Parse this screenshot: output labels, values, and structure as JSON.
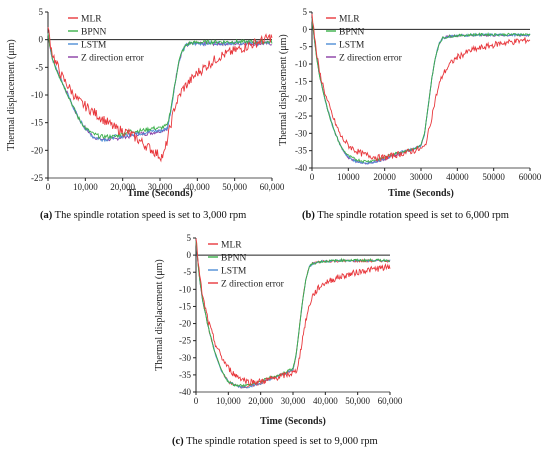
{
  "chart_data": [
    {
      "type": "line",
      "caption_letter": "(a)",
      "caption_text": " The spindle rotation speed is set to 3,000 rpm",
      "xlabel": "Time (Seconds)",
      "ylabel": "Thermal displacement (μm)",
      "xlim": [
        0,
        60000
      ],
      "ylim": [
        -25,
        5
      ],
      "xticks": [
        0,
        10000,
        20000,
        30000,
        40000,
        50000,
        60000
      ],
      "xtick_labels": [
        "0",
        "10,000",
        "20,000",
        "30,000",
        "40,000",
        "50,000",
        "60,000"
      ],
      "yticks": [
        5,
        0,
        -5,
        -10,
        -15,
        -20,
        -25
      ],
      "ytick_labels": [
        "5",
        "0",
        "-5",
        "-10",
        "-15",
        "-20",
        "-25"
      ],
      "legend_position": "top-left",
      "series": [
        {
          "name": "MLR",
          "color": "#e8383d",
          "x": [
            0,
            1000,
            2000,
            4000,
            6000,
            8000,
            10000,
            12000,
            14000,
            16000,
            18000,
            20000,
            22000,
            24000,
            26000,
            28000,
            30000,
            31000,
            32000,
            33000,
            34000,
            36000,
            38000,
            40000,
            42000,
            44000,
            46000,
            48000,
            50000,
            52000,
            54000,
            56000,
            58000,
            60000
          ],
          "y": [
            2,
            -2,
            -4,
            -7,
            -9,
            -11,
            -12,
            -13,
            -14,
            -15,
            -16,
            -16.5,
            -17,
            -18,
            -19,
            -20,
            -21,
            -21,
            -18,
            -15,
            -12,
            -9,
            -7.5,
            -6,
            -5,
            -4,
            -3,
            -2.5,
            -2,
            -1.5,
            -1,
            -0.5,
            0,
            0.5
          ]
        },
        {
          "name": "BPNN",
          "color": "#3cb04a",
          "x": [
            0,
            1000,
            2000,
            4000,
            6000,
            8000,
            10000,
            12000,
            14000,
            16000,
            18000,
            20000,
            22000,
            24000,
            26000,
            28000,
            30000,
            32000,
            33000,
            34000,
            35000,
            36000,
            37000,
            38000,
            40000,
            45000,
            50000,
            55000,
            60000
          ],
          "y": [
            1,
            -3,
            -5,
            -8,
            -11,
            -14,
            -16,
            -17,
            -17.5,
            -17.5,
            -17.5,
            -17,
            -16.5,
            -16.5,
            -16.3,
            -16,
            -16,
            -15.5,
            -12,
            -8,
            -4,
            -2,
            -1,
            -0.6,
            -0.5,
            -0.4,
            -0.4,
            -0.4,
            -0.4
          ]
        },
        {
          "name": "LSTM",
          "color": "#4f8fd6",
          "x": [
            0,
            1000,
            2000,
            4000,
            6000,
            8000,
            10000,
            12000,
            14000,
            16000,
            18000,
            20000,
            22000,
            24000,
            26000,
            28000,
            30000,
            32000,
            33000,
            34000,
            35000,
            36000,
            37000,
            38000,
            40000,
            45000,
            50000,
            55000,
            60000
          ],
          "y": [
            1,
            -3,
            -5,
            -8,
            -11,
            -14,
            -16,
            -17.5,
            -18,
            -18,
            -17.5,
            -17.5,
            -17,
            -17,
            -16.8,
            -16.5,
            -16.5,
            -16,
            -12.5,
            -8,
            -4,
            -2,
            -1,
            -0.8,
            -0.7,
            -0.6,
            -0.6,
            -0.6,
            -0.6
          ]
        },
        {
          "name": "Z direction error",
          "color": "#8a3ea6",
          "x": [
            0,
            1000,
            2000,
            4000,
            6000,
            8000,
            10000,
            12000,
            14000,
            16000,
            18000,
            20000,
            22000,
            24000,
            26000,
            28000,
            30000,
            32000,
            33000,
            34000,
            35000,
            36000,
            37000,
            38000,
            40000,
            45000,
            50000,
            55000,
            60000
          ],
          "y": [
            1,
            -3,
            -5,
            -8,
            -11,
            -14,
            -16,
            -17.5,
            -18,
            -18,
            -18,
            -17.5,
            -17.5,
            -17,
            -17,
            -16.8,
            -16.5,
            -16,
            -12.5,
            -8,
            -4,
            -2,
            -1,
            -0.8,
            -0.8,
            -0.7,
            -0.7,
            -0.7,
            -0.7
          ]
        }
      ]
    },
    {
      "type": "line",
      "caption_letter": "(b)",
      "caption_text": " The spindle rotation speed is set to 6,000 rpm",
      "xlabel": "Time (Seconds)",
      "ylabel": "Thermal displacement (μm)",
      "xlim": [
        0,
        60000
      ],
      "ylim": [
        -40,
        5
      ],
      "xticks": [
        0,
        10000,
        20000,
        30000,
        40000,
        50000,
        60000
      ],
      "xtick_labels": [
        "0",
        "10000",
        "20000",
        "30000",
        "40000",
        "50000",
        "60000"
      ],
      "yticks": [
        5,
        0,
        -5,
        -10,
        -15,
        -20,
        -25,
        -30,
        -35,
        -40
      ],
      "ytick_labels": [
        "5",
        "0",
        "-5",
        "-10",
        "-15",
        "-20",
        "-25",
        "-30",
        "-35",
        "-40"
      ],
      "legend_position": "top-left",
      "series": [
        {
          "name": "MLR",
          "color": "#e8383d",
          "x": [
            0,
            1000,
            2000,
            4000,
            6000,
            8000,
            10000,
            12000,
            14000,
            16000,
            18000,
            20000,
            22000,
            24000,
            26000,
            28000,
            30000,
            31000,
            32000,
            33000,
            34000,
            35000,
            36000,
            38000,
            40000,
            44000,
            48000,
            52000,
            56000,
            60000
          ],
          "y": [
            5,
            -5,
            -12,
            -20,
            -26,
            -31,
            -33.5,
            -35,
            -36,
            -36.5,
            -37,
            -37,
            -36.5,
            -36,
            -35.5,
            -35,
            -34.5,
            -34,
            -30,
            -25,
            -20,
            -16,
            -13,
            -10,
            -8,
            -6,
            -5,
            -4,
            -3.5,
            -3
          ]
        },
        {
          "name": "BPNN",
          "color": "#3cb04a",
          "x": [
            0,
            1000,
            2000,
            4000,
            6000,
            8000,
            10000,
            12000,
            14000,
            16000,
            18000,
            20000,
            22000,
            24000,
            26000,
            28000,
            30000,
            31000,
            32000,
            33000,
            34000,
            35000,
            36000,
            38000,
            40000,
            45000,
            50000,
            55000,
            60000
          ],
          "y": [
            3,
            -6,
            -13,
            -22,
            -29,
            -34,
            -36.5,
            -37.5,
            -38,
            -38,
            -37.5,
            -37,
            -36,
            -35.5,
            -35,
            -34.5,
            -33.5,
            -30,
            -22,
            -14,
            -8,
            -4,
            -2.5,
            -2,
            -1.8,
            -1.5,
            -1.5,
            -1.5,
            -1.5
          ]
        },
        {
          "name": "LSTM",
          "color": "#4f8fd6",
          "x": [
            0,
            1000,
            2000,
            4000,
            6000,
            8000,
            10000,
            12000,
            14000,
            16000,
            18000,
            20000,
            22000,
            24000,
            26000,
            28000,
            30000,
            31000,
            32000,
            33000,
            34000,
            35000,
            36000,
            38000,
            40000,
            45000,
            50000,
            55000,
            60000
          ],
          "y": [
            3,
            -6,
            -13,
            -22,
            -29,
            -34,
            -37,
            -38,
            -38.5,
            -38.5,
            -38,
            -37.5,
            -36.5,
            -35.5,
            -35,
            -34.5,
            -33.5,
            -30,
            -22,
            -14,
            -8,
            -4,
            -2.5,
            -2,
            -1.8,
            -1.6,
            -1.6,
            -1.6,
            -1.6
          ]
        },
        {
          "name": "Z direction error",
          "color": "#8a3ea6",
          "x": [
            0,
            1000,
            2000,
            4000,
            6000,
            8000,
            10000,
            12000,
            14000,
            16000,
            18000,
            20000,
            22000,
            24000,
            26000,
            28000,
            30000,
            31000,
            32000,
            33000,
            34000,
            35000,
            36000,
            38000,
            40000,
            45000,
            50000,
            55000,
            60000
          ],
          "y": [
            3,
            -6,
            -13,
            -22,
            -29,
            -34,
            -37,
            -38,
            -38.5,
            -38.5,
            -38,
            -37.5,
            -36.5,
            -36,
            -35,
            -34.5,
            -33.5,
            -30,
            -22,
            -14,
            -8,
            -4,
            -2.5,
            -2,
            -1.8,
            -1.7,
            -1.7,
            -1.7,
            -1.7
          ]
        }
      ]
    },
    {
      "type": "line",
      "caption_letter": "(c)",
      "caption_text": " The spindle rotation speed is set to 9,000 rpm",
      "xlabel": "Time (Seconds)",
      "ylabel": "Thermal displacement (μm)",
      "xlim": [
        0,
        60000
      ],
      "ylim": [
        -40,
        5
      ],
      "xticks": [
        0,
        10000,
        20000,
        30000,
        40000,
        50000,
        60000
      ],
      "xtick_labels": [
        "0",
        "10,000",
        "20,000",
        "30,000",
        "40,000",
        "50,000",
        "60,000"
      ],
      "yticks": [
        5,
        0,
        -5,
        -10,
        -15,
        -20,
        -25,
        -30,
        -35,
        -40
      ],
      "ytick_labels": [
        "5",
        "0",
        "-5",
        "-10",
        "-15",
        "-20",
        "-25",
        "-30",
        "-35",
        "-40"
      ],
      "legend_position": "top-left",
      "series": [
        {
          "name": "MLR",
          "color": "#e8383d",
          "x": [
            0,
            1000,
            2000,
            4000,
            6000,
            8000,
            10000,
            12000,
            14000,
            16000,
            18000,
            20000,
            22000,
            24000,
            26000,
            28000,
            30000,
            31000,
            32000,
            33000,
            34000,
            35000,
            36000,
            38000,
            40000,
            44000,
            48000,
            52000,
            56000,
            60000
          ],
          "y": [
            5,
            -5,
            -12,
            -20,
            -26,
            -30,
            -33,
            -35,
            -36,
            -37,
            -37,
            -37,
            -36.5,
            -36,
            -35.5,
            -35,
            -34.5,
            -34,
            -30,
            -24,
            -19,
            -15,
            -12,
            -9.5,
            -8,
            -6.5,
            -5.5,
            -4.5,
            -4,
            -3.5
          ]
        },
        {
          "name": "BPNN",
          "color": "#3cb04a",
          "x": [
            0,
            1000,
            2000,
            4000,
            6000,
            8000,
            10000,
            12000,
            14000,
            16000,
            18000,
            20000,
            22000,
            24000,
            26000,
            28000,
            30000,
            31000,
            32000,
            33000,
            34000,
            35000,
            36000,
            38000,
            40000,
            45000,
            50000,
            55000,
            60000
          ],
          "y": [
            4,
            -6,
            -13,
            -22,
            -29,
            -34,
            -37,
            -38,
            -38,
            -38,
            -37.5,
            -37,
            -36,
            -35.5,
            -35,
            -34,
            -33,
            -29,
            -21,
            -13,
            -7,
            -3.5,
            -2.5,
            -2,
            -1.8,
            -1.5,
            -1.5,
            -1.5,
            -1.5
          ]
        },
        {
          "name": "LSTM",
          "color": "#4f8fd6",
          "x": [
            0,
            1000,
            2000,
            4000,
            6000,
            8000,
            10000,
            12000,
            14000,
            16000,
            18000,
            20000,
            22000,
            24000,
            26000,
            28000,
            30000,
            31000,
            32000,
            33000,
            34000,
            35000,
            36000,
            38000,
            40000,
            45000,
            50000,
            55000,
            60000
          ],
          "y": [
            4,
            -6,
            -13,
            -22,
            -29,
            -34,
            -37,
            -38,
            -38.5,
            -38.5,
            -38,
            -37.5,
            -36.5,
            -36,
            -35,
            -34.5,
            -33.5,
            -29,
            -21,
            -13,
            -7,
            -3.5,
            -2.5,
            -2,
            -1.8,
            -1.6,
            -1.6,
            -1.6,
            -1.6
          ]
        },
        {
          "name": "Z direction error",
          "color": "#e8383d",
          "x": [
            0,
            1000,
            2000,
            4000,
            6000,
            8000,
            10000,
            12000,
            14000,
            16000,
            18000,
            20000,
            22000,
            24000,
            26000,
            28000,
            30000,
            31000,
            32000,
            33000,
            34000,
            35000,
            36000,
            38000,
            40000,
            45000,
            50000,
            55000,
            60000
          ],
          "y": [
            4,
            -6,
            -13,
            -22,
            -29,
            -34,
            -37,
            -38,
            -38.5,
            -38.5,
            -38,
            -37.5,
            -36.5,
            -36,
            -35,
            -34.5,
            -33.5,
            -29,
            -21,
            -13,
            -7,
            -3.5,
            -2.5,
            -2,
            -1.8,
            -1.7,
            -1.7,
            -1.7,
            -1.7
          ]
        }
      ]
    }
  ]
}
